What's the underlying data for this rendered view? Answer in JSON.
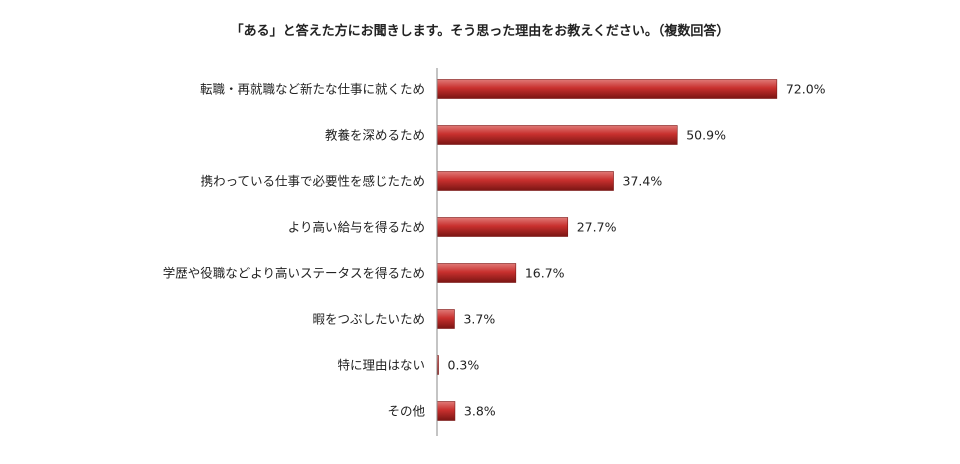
{
  "colors": {
    "bar_fill": "#C8302E",
    "bar_highlight": "#E07A77",
    "bar_edge": "#7A1513",
    "axis": "#8A8A8A",
    "text": "#222222"
  },
  "chart_data": {
    "type": "bar",
    "orientation": "horizontal",
    "title": "「ある」と答えた方にお聞きします。そう思った理由をお教えください。（複数回答）",
    "categories": [
      "転職・再就職など新たな仕事に就くため",
      "教養を深めるため",
      "携わっている仕事で必要性を感じたため",
      "より高い給与を得るため",
      "学歴や役職などより高いステータスを得るため",
      "暇をつぶしたいため",
      "特に理由はない",
      "その他"
    ],
    "values": [
      72.0,
      50.9,
      37.4,
      27.7,
      16.7,
      3.7,
      0.3,
      3.8
    ],
    "value_labels": [
      "72.0%",
      "50.9%",
      "37.4%",
      "27.7%",
      "16.7%",
      "3.7%",
      "0.3%",
      "3.8%"
    ],
    "xlim": [
      0,
      100
    ],
    "grid": false,
    "legend": "none"
  }
}
